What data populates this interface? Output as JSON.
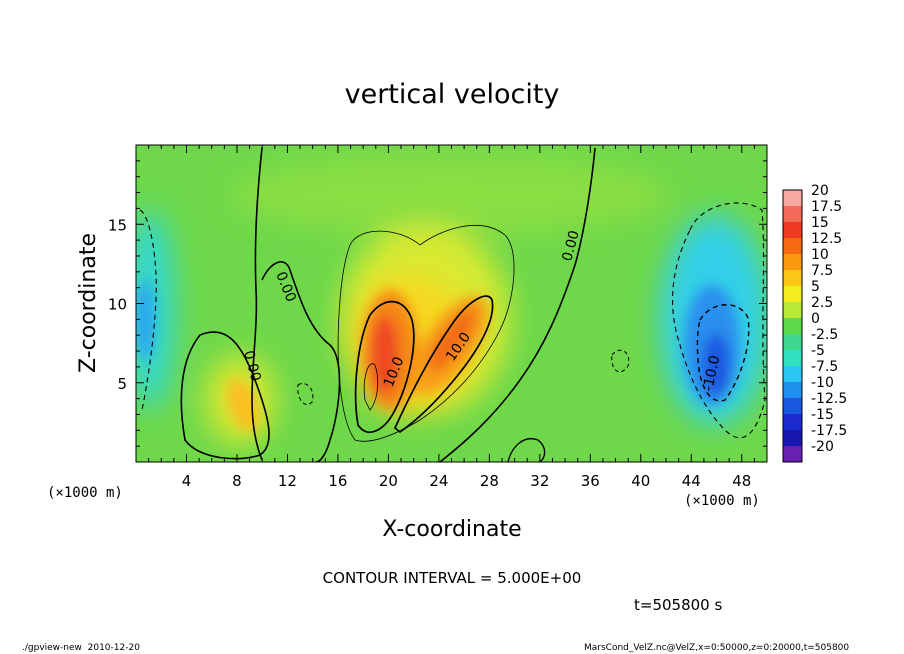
{
  "chart_data": {
    "type": "heatmap",
    "title": "vertical velocity",
    "xlabel": "X-coordinate",
    "ylabel": "Z-coordinate",
    "x_unit": "(×1000 m)",
    "y_unit": "(×1000 m)",
    "x_ticks": [
      4,
      8,
      12,
      16,
      20,
      24,
      28,
      32,
      36,
      40,
      44,
      48
    ],
    "y_ticks": [
      5,
      10,
      15
    ],
    "xlim": [
      0,
      50
    ],
    "ylim": [
      0,
      20
    ],
    "colorbar_labels": [
      "20",
      "17.5",
      "15",
      "12.5",
      "10",
      "7.5",
      "5",
      "2.5",
      "0",
      "-2.5",
      "-5",
      "-7.5",
      "-10",
      "-12.5",
      "-15",
      "-17.5",
      "-20"
    ],
    "colorbar_colors": [
      "#f7a8a0",
      "#f26a5a",
      "#ee3a20",
      "#f56a10",
      "#fa9a10",
      "#fbc818",
      "#f2ee20",
      "#b8e838",
      "#5ed84c",
      "#40d890",
      "#30e0c0",
      "#2ac8f0",
      "#2090ee",
      "#1a58e0",
      "#1a2ad0",
      "#1818b0",
      "#6820b0"
    ],
    "contour_labels": [
      "0.00",
      "0.00",
      "0.00",
      "10.0",
      "10.0",
      "-10.0"
    ],
    "contour_interval": "CONTOUR INTERVAL = 5.000E+00",
    "time_label": "t=505800 s",
    "footer_left": "./gpview-new  2010-12-20",
    "footer_right": "MarsCond_VelZ.nc@VelZ,x=0:50000,z=0:20000,t=505800"
  }
}
